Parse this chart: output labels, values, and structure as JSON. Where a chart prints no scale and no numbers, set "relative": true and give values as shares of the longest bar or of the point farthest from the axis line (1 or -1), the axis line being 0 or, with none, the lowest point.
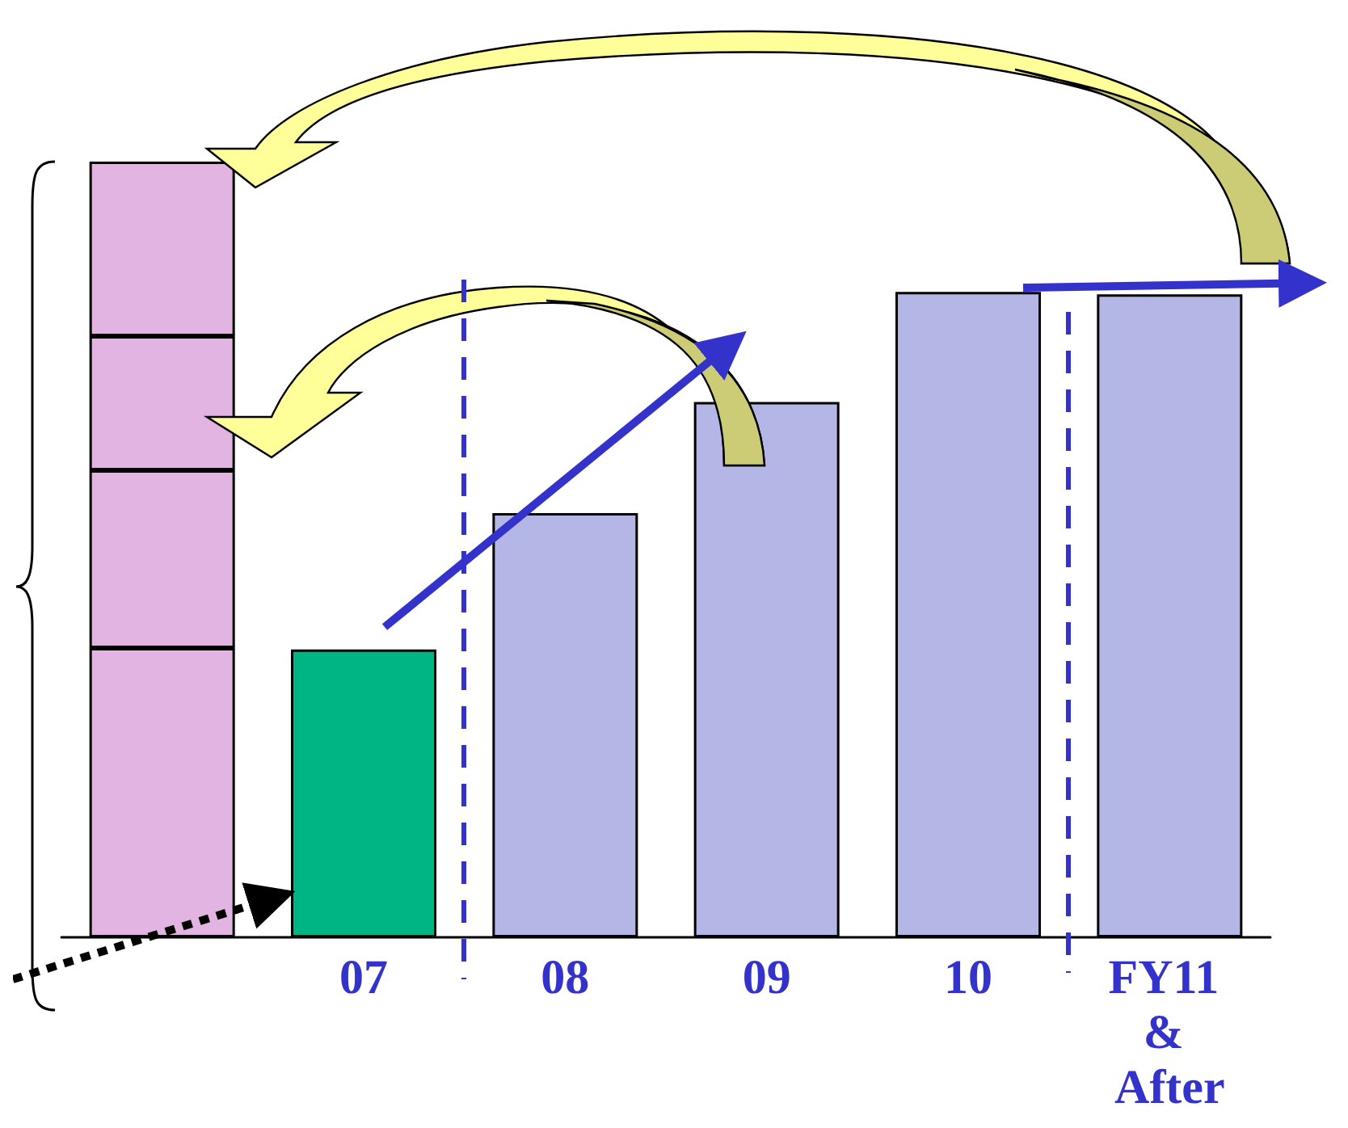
{
  "chart_data": {
    "type": "bar",
    "relative": true,
    "stacked": true,
    "categories": [
      null,
      "07",
      "08",
      "09",
      "10",
      "FY11 & After"
    ],
    "series": [
      {
        "colors": [
          "#e2b4e2",
          "#00b584",
          "#b4b6e6",
          "#b4b6e6",
          "#b4b6e6",
          "#b4b6e6"
        ],
        "values": [
          0.373,
          0.371,
          0.547,
          0.69,
          0.832,
          0.829
        ]
      },
      {
        "color": "#e2b4e2",
        "values": [
          0.229,
          null,
          null,
          null,
          null,
          null
        ]
      },
      {
        "color": "#e2b4e2",
        "values": [
          0.173,
          null,
          null,
          null,
          null,
          null
        ]
      },
      {
        "color": "#e2b4e2",
        "values": [
          0.225,
          null,
          null,
          null,
          null,
          null
        ]
      }
    ],
    "grid": false
  }
}
